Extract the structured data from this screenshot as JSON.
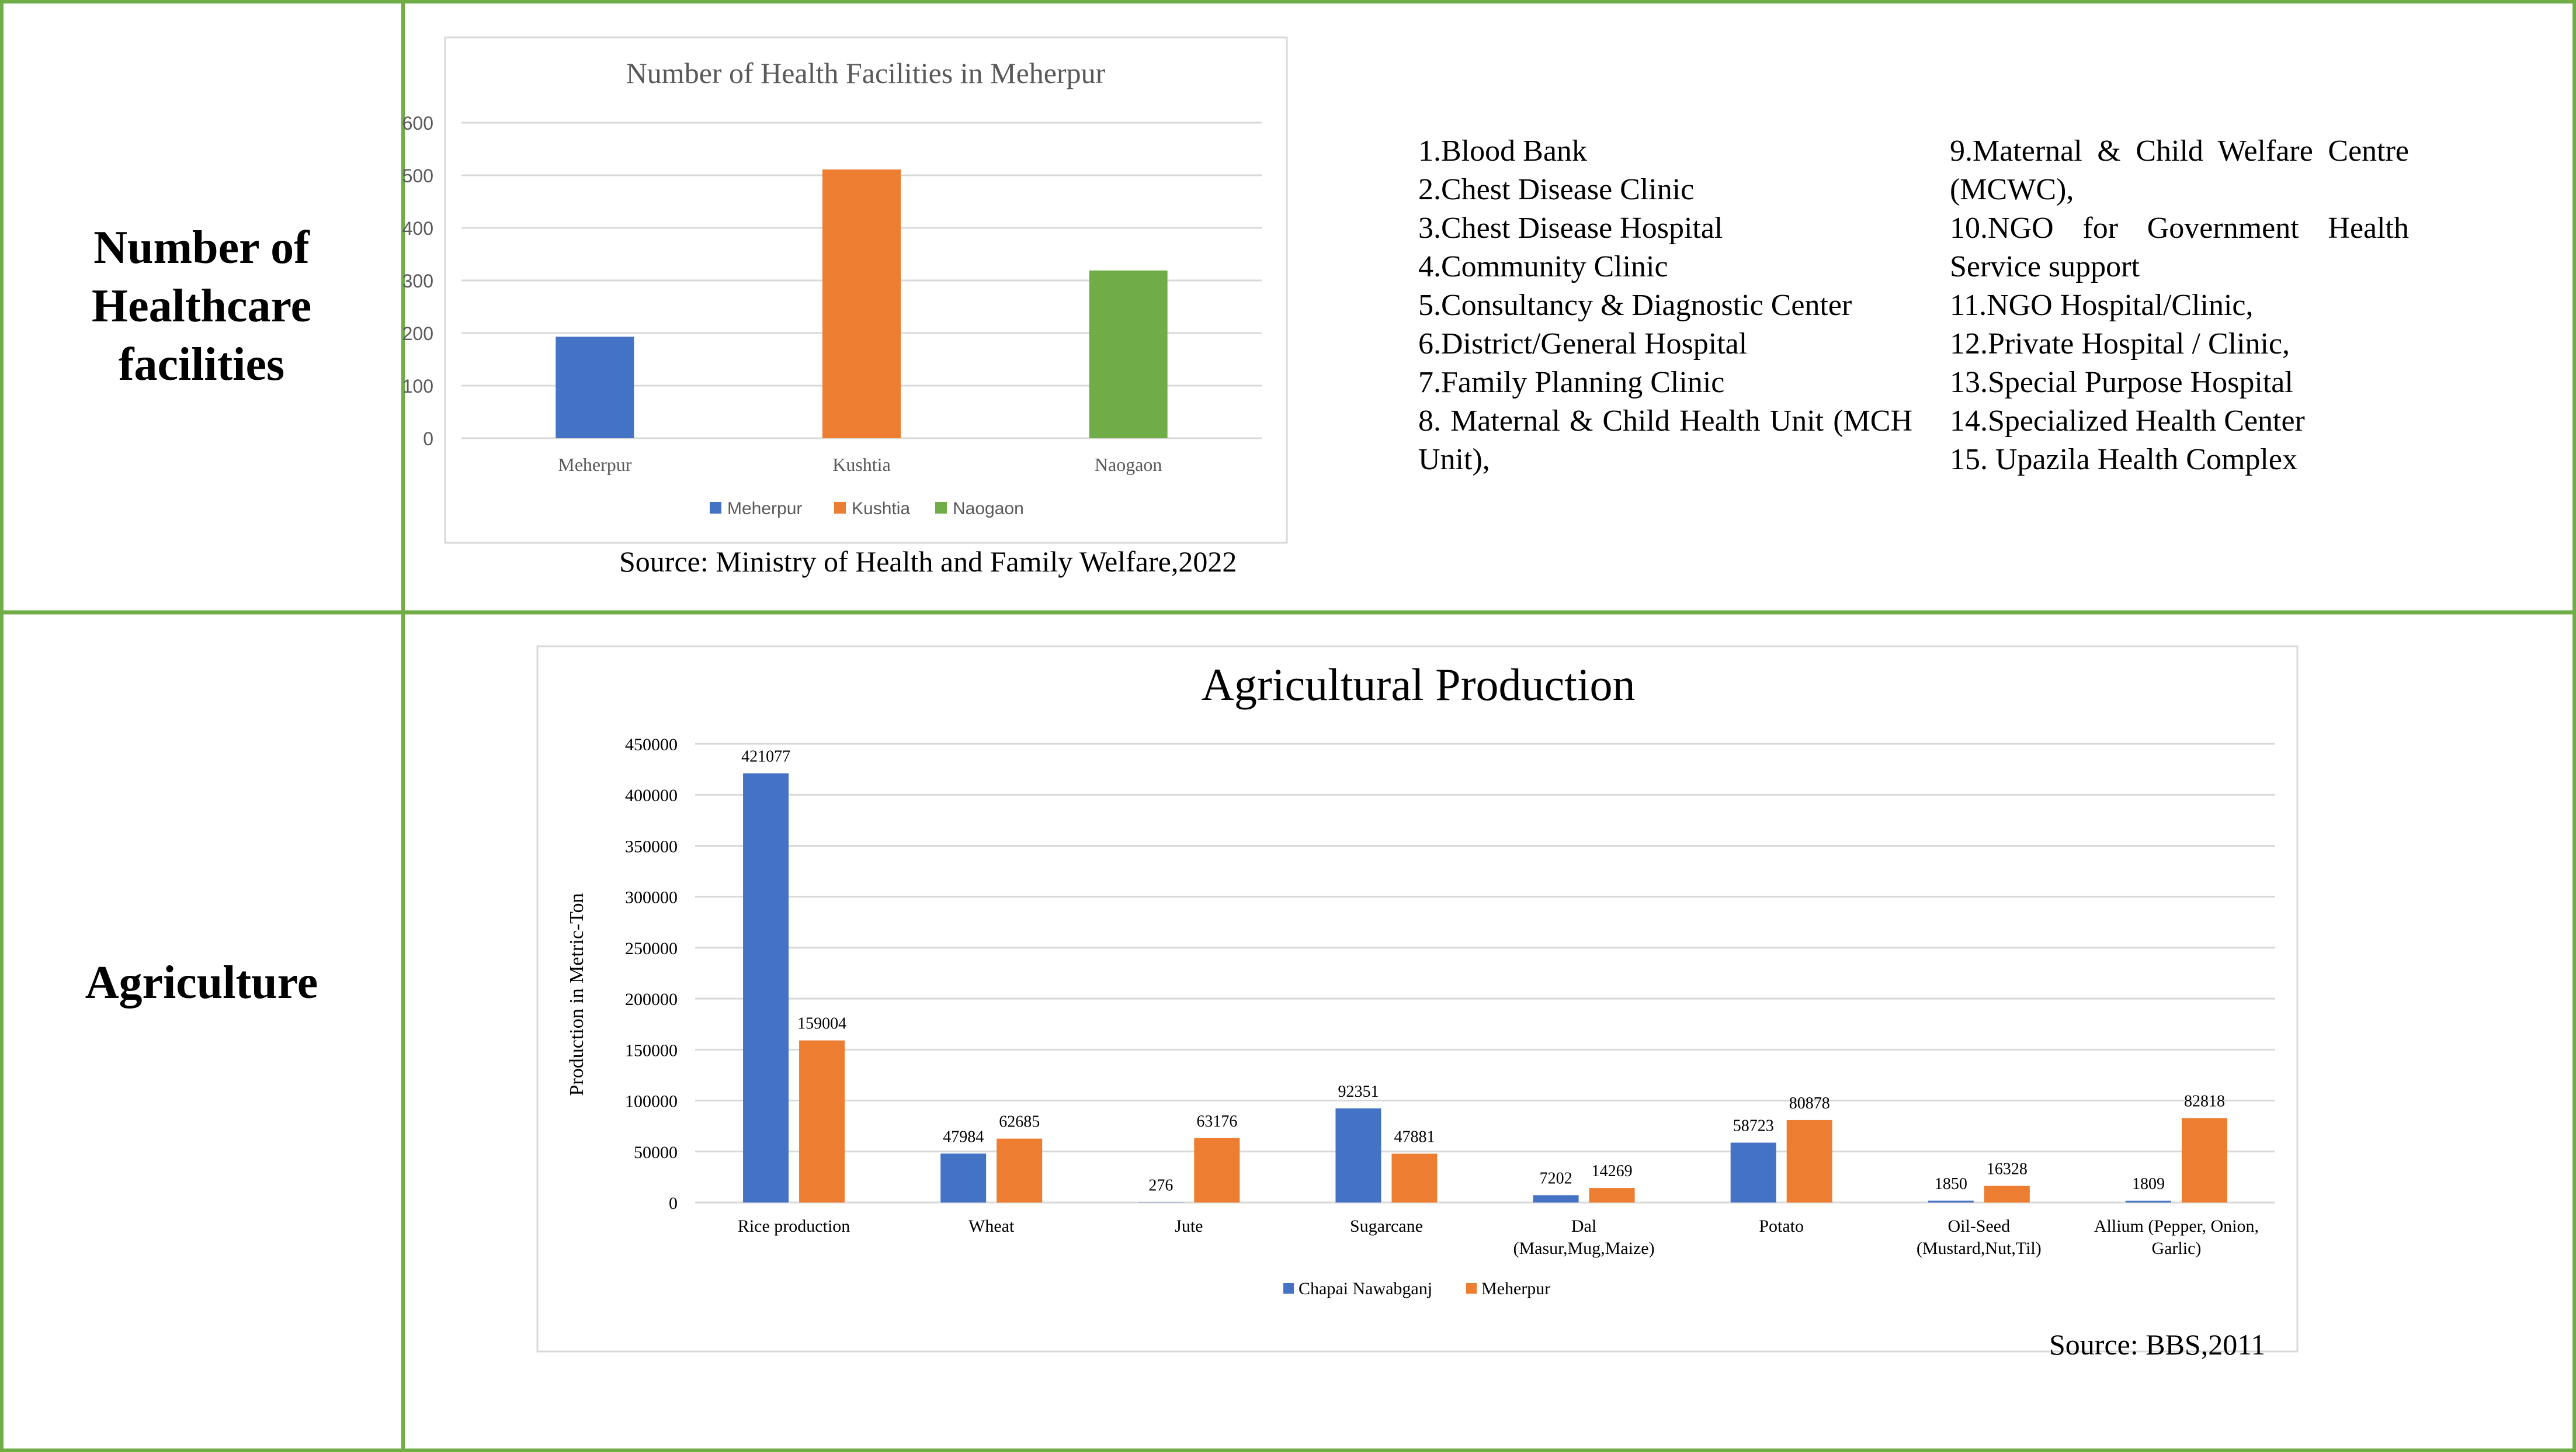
{
  "rows": {
    "health_label": "Number of Healthcare facilities",
    "agri_label": "Agriculture"
  },
  "colors": {
    "border": "#70ad47",
    "blue": "#4472c4",
    "orange": "#ed7d31",
    "green": "#70ad47",
    "grid": "#d9d9d9",
    "tick_text": "#595959"
  },
  "facility_list": {
    "left": [
      "1.Blood Bank",
      "2.Chest Disease Clinic",
      "3.Chest Disease Hospital",
      "4.Community Clinic",
      "5.Consultancy & Diagnostic Center",
      "6.District/General Hospital",
      "7.Family Planning Clinic",
      "8. Maternal & Child Health Unit (MCH Unit),"
    ],
    "right": [
      "9.Maternal & Child Welfare Centre (MCWC),",
      "10.NGO for Government Health Service support",
      "11.NGO Hospital/Clinic,",
      "12.Private Hospital / Clinic,",
      "13.Special Purpose Hospital",
      "14.Specialized Health Center",
      "15. Upazila Health Complex"
    ]
  },
  "sources": {
    "health": "Source: Ministry of Health and Family Welfare,2022",
    "agri": "Source: BBS,2011"
  },
  "chart_data": [
    {
      "type": "bar",
      "title": "Number of Health Facilities in Meherpur",
      "categories": [
        "Meherpur",
        "Kushtia",
        "Naogaon"
      ],
      "values": [
        193,
        511,
        319
      ],
      "bar_colors": [
        "#4472c4",
        "#ed7d31",
        "#70ad47"
      ],
      "legend": [
        "Meherpur",
        "Kushtia",
        "Naogaon"
      ],
      "legend_position": "bottom",
      "ylim": [
        0,
        600
      ],
      "yticks": [
        0,
        100,
        200,
        300,
        400,
        500,
        600
      ],
      "xlabel": "",
      "ylabel": "",
      "grid": true
    },
    {
      "type": "bar",
      "title": "Agricultural Production",
      "ylabel": "Production in Metric-Ton",
      "xlabel": "",
      "categories": [
        [
          "Rice production"
        ],
        [
          "Wheat"
        ],
        [
          "Jute"
        ],
        [
          "Sugarcane"
        ],
        [
          "Dal",
          "(Masur,Mug,Maize)"
        ],
        [
          "Potato"
        ],
        [
          "Oil-Seed",
          "(Mustard,Nut,Til)"
        ],
        [
          "Allium (Pepper, Onion,",
          "Garlic)"
        ]
      ],
      "series": [
        {
          "name": "Chapai Nawabganj",
          "color": "#4472c4",
          "values": [
            421077,
            47984,
            276,
            92351,
            7202,
            58723,
            1850,
            1809
          ]
        },
        {
          "name": "Meherpur",
          "color": "#ed7d31",
          "values": [
            159004,
            62685,
            63176,
            47881,
            14269,
            80878,
            16328,
            82818
          ]
        }
      ],
      "ylim": [
        0,
        450000
      ],
      "yticks": [
        0,
        50000,
        100000,
        150000,
        200000,
        250000,
        300000,
        350000,
        400000,
        450000
      ],
      "legend_position": "bottom",
      "data_labels": true,
      "grid": true
    }
  ]
}
